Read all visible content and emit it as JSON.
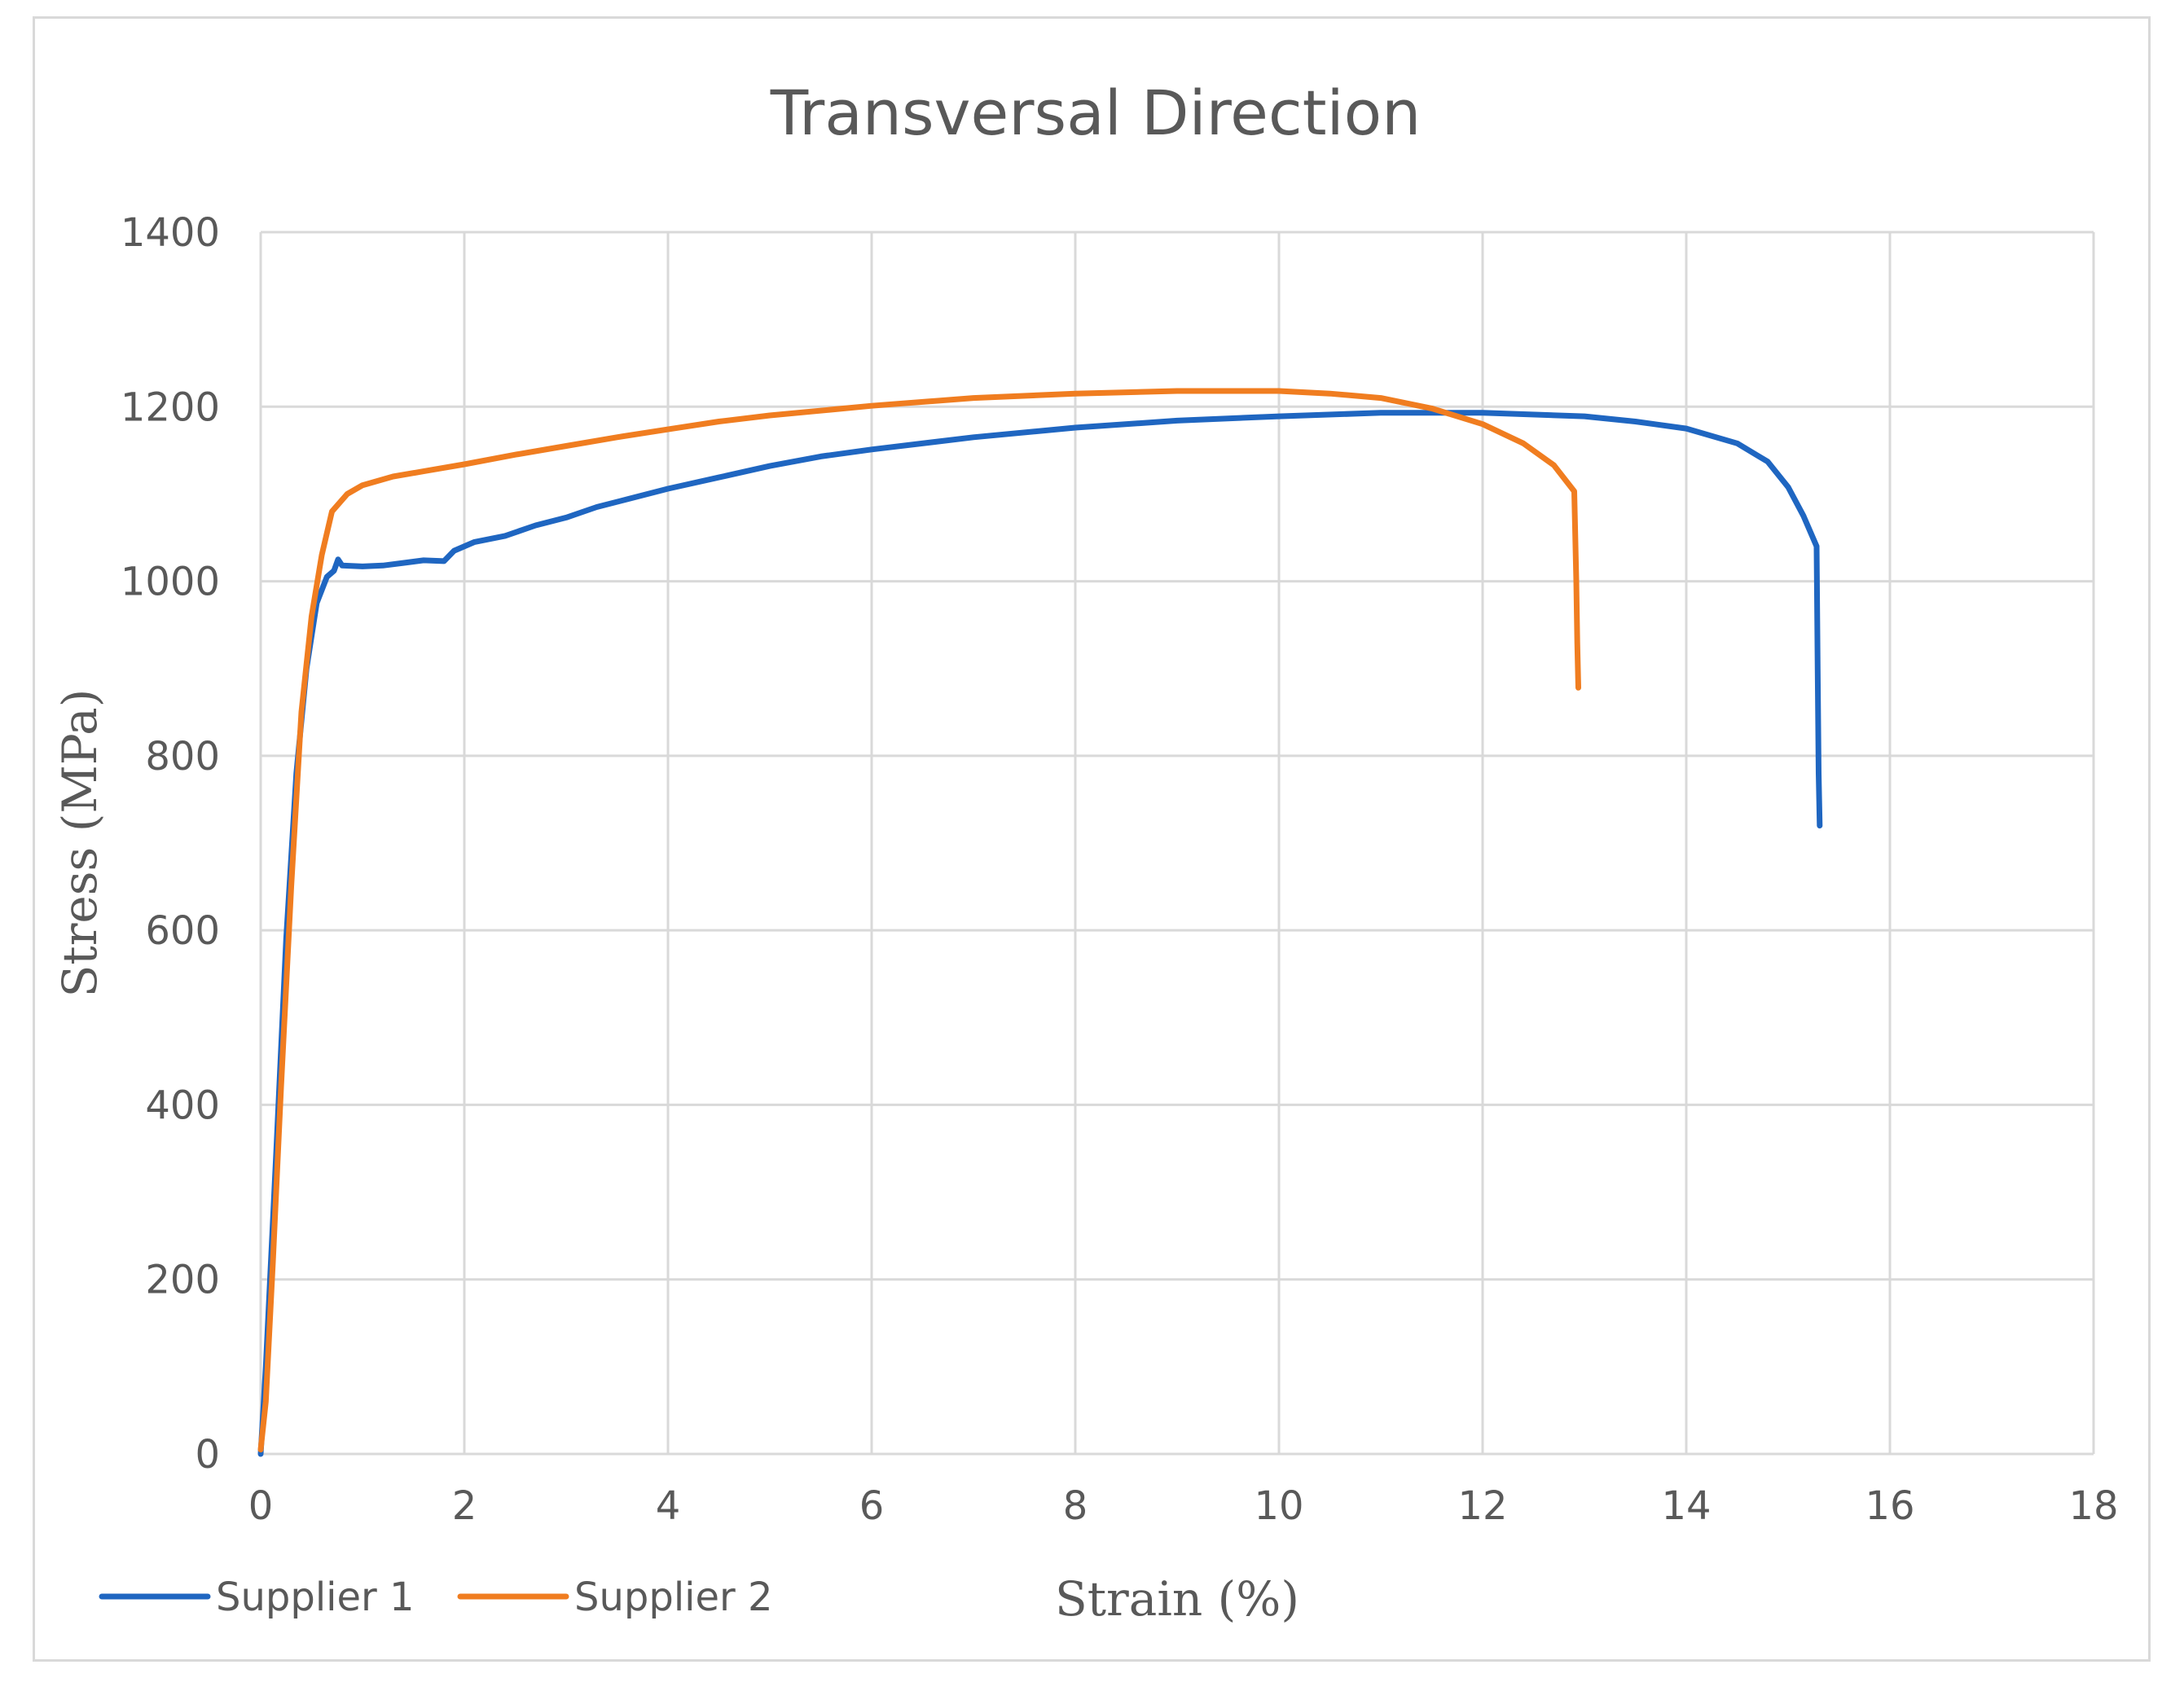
{
  "chart_data": {
    "type": "line",
    "title": "Transversal Direction",
    "xlabel": "Strain (%)",
    "ylabel": "Stress (MPa)",
    "xlim": [
      0,
      18
    ],
    "ylim": [
      0,
      1400
    ],
    "x_ticks": [
      0,
      2,
      4,
      6,
      8,
      10,
      12,
      14,
      16,
      18
    ],
    "y_ticks": [
      0,
      200,
      400,
      600,
      800,
      1000,
      1200,
      1400
    ],
    "grid": true,
    "legend_position": "bottom-left",
    "series": [
      {
        "name": "Supplier 1",
        "color": "#1f66c1",
        "points": [
          [
            0,
            0
          ],
          [
            0.05,
            100
          ],
          [
            0.15,
            340
          ],
          [
            0.25,
            590
          ],
          [
            0.35,
            780
          ],
          [
            0.45,
            900
          ],
          [
            0.55,
            975
          ],
          [
            0.65,
            1005
          ],
          [
            0.72,
            1012
          ],
          [
            0.76,
            1025
          ],
          [
            0.8,
            1018
          ],
          [
            1.0,
            1017
          ],
          [
            1.2,
            1018
          ],
          [
            1.4,
            1021
          ],
          [
            1.6,
            1024
          ],
          [
            1.8,
            1023
          ],
          [
            1.9,
            1035
          ],
          [
            2.1,
            1045
          ],
          [
            2.4,
            1052
          ],
          [
            2.7,
            1064
          ],
          [
            3.0,
            1073
          ],
          [
            3.3,
            1085
          ],
          [
            3.6,
            1094
          ],
          [
            4.0,
            1106
          ],
          [
            4.5,
            1119
          ],
          [
            5.0,
            1132
          ],
          [
            5.5,
            1143
          ],
          [
            6.0,
            1151
          ],
          [
            7.0,
            1165
          ],
          [
            8.0,
            1176
          ],
          [
            9.0,
            1184
          ],
          [
            10.0,
            1189
          ],
          [
            11.0,
            1193
          ],
          [
            12.0,
            1193
          ],
          [
            13.0,
            1189
          ],
          [
            13.5,
            1183
          ],
          [
            14.0,
            1175
          ],
          [
            14.5,
            1158
          ],
          [
            14.8,
            1137
          ],
          [
            15.0,
            1108
          ],
          [
            15.15,
            1075
          ],
          [
            15.28,
            1040
          ],
          [
            15.29,
            900
          ],
          [
            15.3,
            780
          ],
          [
            15.31,
            720
          ]
        ]
      },
      {
        "name": "Supplier 2",
        "color": "#f07d20",
        "points": [
          [
            0,
            5
          ],
          [
            0.05,
            60
          ],
          [
            0.12,
            220
          ],
          [
            0.2,
            420
          ],
          [
            0.3,
            650
          ],
          [
            0.4,
            850
          ],
          [
            0.5,
            960
          ],
          [
            0.6,
            1030
          ],
          [
            0.7,
            1080
          ],
          [
            0.85,
            1100
          ],
          [
            1.0,
            1110
          ],
          [
            1.3,
            1120
          ],
          [
            1.6,
            1126
          ],
          [
            2.0,
            1134
          ],
          [
            2.5,
            1145
          ],
          [
            3.0,
            1155
          ],
          [
            3.5,
            1165
          ],
          [
            4.0,
            1174
          ],
          [
            4.5,
            1183
          ],
          [
            5.0,
            1190
          ],
          [
            6.0,
            1201
          ],
          [
            7.0,
            1210
          ],
          [
            8.0,
            1215
          ],
          [
            9.0,
            1218
          ],
          [
            10.0,
            1218
          ],
          [
            10.5,
            1215
          ],
          [
            11.0,
            1210
          ],
          [
            11.5,
            1198
          ],
          [
            12.0,
            1180
          ],
          [
            12.4,
            1158
          ],
          [
            12.7,
            1133
          ],
          [
            12.9,
            1103
          ],
          [
            12.92,
            1000
          ],
          [
            12.93,
            930
          ],
          [
            12.94,
            878
          ]
        ]
      }
    ]
  }
}
